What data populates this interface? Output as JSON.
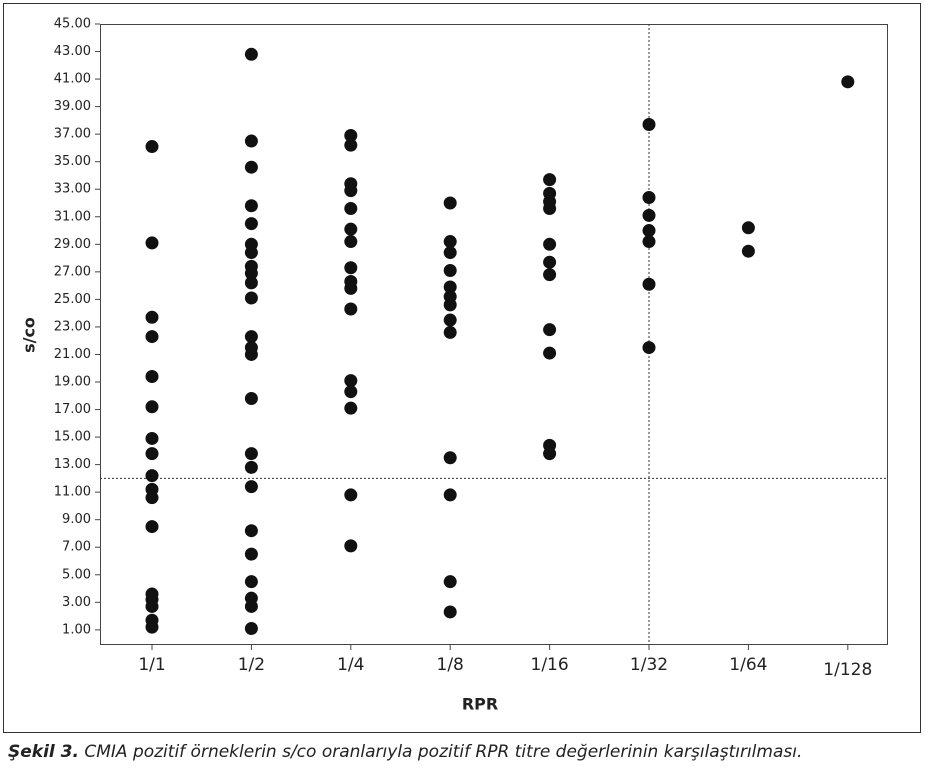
{
  "chart_data": {
    "type": "strip",
    "x_label": "RPR",
    "y_label": "s/co",
    "caption_label": "Şekil 3.",
    "caption": "CMIA pozitif örneklerin s/co oranlarıyla pozitif RPR titre değerlerinin karşılaştırılması.",
    "color": "#111111",
    "ylim": [
      -0.1,
      45
    ],
    "yticks": [
      {
        "value": 1,
        "label": "1.00"
      },
      {
        "value": 3,
        "label": "3.00"
      },
      {
        "value": 5,
        "label": "5.00"
      },
      {
        "value": 7,
        "label": "7.00"
      },
      {
        "value": 9,
        "label": "9.00"
      },
      {
        "value": 11,
        "label": "11.00"
      },
      {
        "value": 13,
        "label": "13.00"
      },
      {
        "value": 15,
        "label": "15.00"
      },
      {
        "value": 17,
        "label": "17.00"
      },
      {
        "value": 19,
        "label": "19.00"
      },
      {
        "value": 21,
        "label": "21.00"
      },
      {
        "value": 23,
        "label": "23.00"
      },
      {
        "value": 25,
        "label": "25.00"
      },
      {
        "value": 27,
        "label": "27.00"
      },
      {
        "value": 29,
        "label": "29.00"
      },
      {
        "value": 31,
        "label": "31.00"
      },
      {
        "value": 33,
        "label": "33.00"
      },
      {
        "value": 35,
        "label": "35.00"
      },
      {
        "value": 37,
        "label": "37.00"
      },
      {
        "value": 39,
        "label": "39.00"
      },
      {
        "value": 41,
        "label": "41.00"
      },
      {
        "value": 43,
        "label": "43.00"
      },
      {
        "value": 45,
        "label": "45.00"
      }
    ],
    "hline": 12,
    "vline": "1/32",
    "groups": [
      {
        "name": "1/1",
        "values": [
          36.1,
          29.1,
          23.7,
          22.3,
          19.4,
          17.2,
          14.9,
          13.8,
          12.2,
          11.2,
          10.6,
          8.5,
          3.6,
          3.2,
          2.7,
          1.7,
          1.2
        ]
      },
      {
        "name": "1/2",
        "values": [
          42.8,
          36.5,
          34.6,
          31.8,
          30.5,
          29.0,
          28.4,
          27.4,
          26.9,
          26.2,
          25.1,
          22.3,
          21.5,
          21.0,
          17.8,
          13.8,
          12.8,
          11.4,
          8.2,
          6.5,
          4.5,
          3.3,
          2.7,
          1.1
        ]
      },
      {
        "name": "1/4",
        "values": [
          36.9,
          36.2,
          33.4,
          32.9,
          31.6,
          30.1,
          29.2,
          27.3,
          26.3,
          25.8,
          24.3,
          19.1,
          18.3,
          17.1,
          10.8,
          7.1
        ]
      },
      {
        "name": "1/8",
        "values": [
          32.0,
          29.2,
          28.4,
          27.1,
          25.9,
          25.2,
          24.6,
          23.5,
          22.6,
          13.5,
          10.8,
          4.5,
          2.3
        ]
      },
      {
        "name": "1/16",
        "values": [
          33.7,
          32.7,
          32.1,
          31.6,
          29.0,
          27.7,
          26.8,
          22.8,
          21.1,
          14.4,
          13.8
        ]
      },
      {
        "name": "1/32",
        "values": [
          37.7,
          32.4,
          31.1,
          30.0,
          29.2,
          26.1,
          21.5
        ]
      },
      {
        "name": "1/64",
        "values": [
          30.2,
          28.5
        ]
      },
      {
        "name": "1/128",
        "values": [
          40.8
        ]
      }
    ]
  }
}
